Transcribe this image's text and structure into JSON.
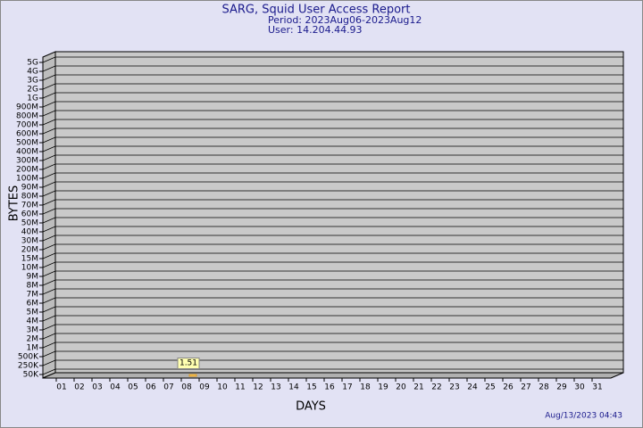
{
  "chart_data": {
    "type": "bar",
    "title": "SARG, Squid User Access Report",
    "subtitle": [
      "Period: 2023Aug06-2023Aug12",
      "User: 14.204.44.93"
    ],
    "ylabel": "BYTES",
    "xlabel": "DAYS",
    "footer": "Aug/13/2023 04:43",
    "categories": [
      "01",
      "02",
      "03",
      "04",
      "05",
      "06",
      "07",
      "08",
      "09",
      "10",
      "11",
      "12",
      "13",
      "14",
      "15",
      "16",
      "17",
      "18",
      "19",
      "20",
      "21",
      "22",
      "23",
      "24",
      "25",
      "26",
      "27",
      "28",
      "29",
      "30",
      "31"
    ],
    "values": [
      null,
      null,
      null,
      null,
      null,
      null,
      null,
      1.51,
      null,
      null,
      null,
      null,
      null,
      null,
      null,
      null,
      null,
      null,
      null,
      null,
      null,
      null,
      null,
      null,
      null,
      null,
      null,
      null,
      null,
      null,
      null
    ],
    "color": "#ffcc55",
    "ylim": [
      0,
      5000000000
    ],
    "yticks": [
      {
        "value": 5000000000,
        "label": "5G"
      },
      {
        "value": 4000000000,
        "label": "4G"
      },
      {
        "value": 3000000000,
        "label": "3G"
      },
      {
        "value": 2000000000,
        "label": "2G"
      },
      {
        "value": 1000000000,
        "label": "1G"
      },
      {
        "value": 900000000,
        "label": "900M"
      },
      {
        "value": 800000000,
        "label": "800M"
      },
      {
        "value": 700000000,
        "label": "700M"
      },
      {
        "value": 600000000,
        "label": "600M"
      },
      {
        "value": 500000000,
        "label": "500M"
      },
      {
        "value": 400000000,
        "label": "400M"
      },
      {
        "value": 300000000,
        "label": "300M"
      },
      {
        "value": 200000000,
        "label": "200M"
      },
      {
        "value": 100000000,
        "label": "100M"
      },
      {
        "value": 90000000,
        "label": "90M"
      },
      {
        "value": 80000000,
        "label": "80M"
      },
      {
        "value": 70000000,
        "label": "70M"
      },
      {
        "value": 60000000,
        "label": "60M"
      },
      {
        "value": 50000000,
        "label": "50M"
      },
      {
        "value": 40000000,
        "label": "40M"
      },
      {
        "value": 30000000,
        "label": "30M"
      },
      {
        "value": 20000000,
        "label": "20M"
      },
      {
        "value": 15000000,
        "label": "15M"
      },
      {
        "value": 10000000,
        "label": "10M"
      },
      {
        "value": 9000000,
        "label": "9M"
      },
      {
        "value": 8000000,
        "label": "8M"
      },
      {
        "value": 7000000,
        "label": "7M"
      },
      {
        "value": 6000000,
        "label": "6M"
      },
      {
        "value": 5000000,
        "label": "5M"
      },
      {
        "value": 4000000,
        "label": "4M"
      },
      {
        "value": 3000000,
        "label": "3M"
      },
      {
        "value": 2000000,
        "label": "2M"
      },
      {
        "value": 1000000,
        "label": "1M"
      },
      {
        "value": 500000,
        "label": "500K"
      },
      {
        "value": 250000,
        "label": "250K"
      },
      {
        "value": 50000,
        "label": "50K"
      }
    ],
    "grid": true
  }
}
